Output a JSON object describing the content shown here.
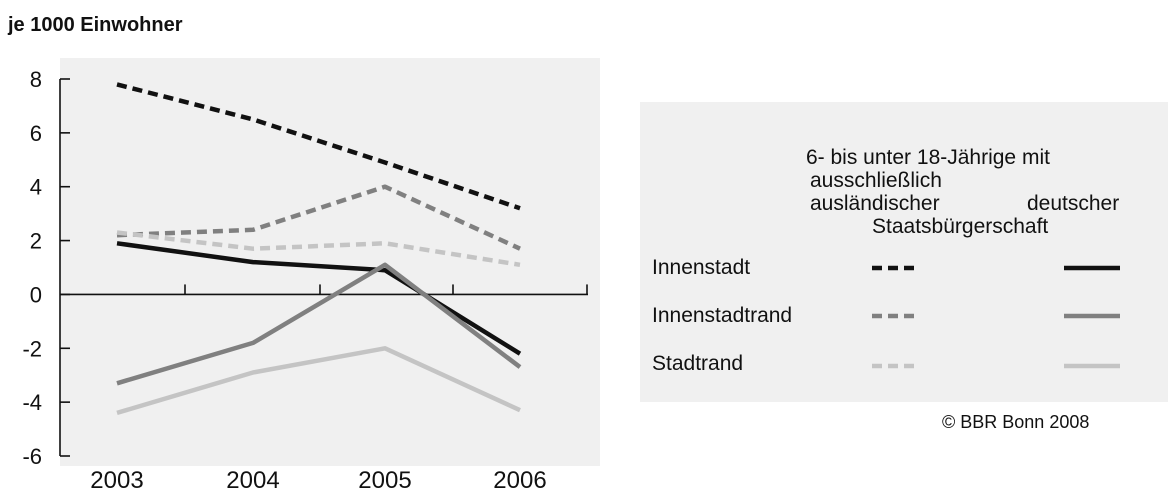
{
  "chart_data": {
    "type": "line",
    "ylabel": "je 1000 Einwohner",
    "ylim": [
      -6,
      8
    ],
    "yticks": [
      8,
      6,
      4,
      2,
      0,
      -2,
      -4,
      -6
    ],
    "categories": [
      "2003",
      "2004",
      "2005",
      "2006"
    ],
    "series": [
      {
        "name": "Innenstadt – ausschließlich ausländischer Staatsbürgerschaft",
        "color": "#111111",
        "dash": true,
        "values": [
          7.8,
          6.5,
          4.9,
          3.2
        ]
      },
      {
        "name": "Innenstadtrand – ausschließlich ausländischer Staatsbürgerschaft",
        "color": "#808080",
        "dash": true,
        "values": [
          2.2,
          2.4,
          4.0,
          1.7
        ]
      },
      {
        "name": "Stadtrand – ausschließlich ausländischer Staatsbürgerschaft",
        "color": "#c4c4c4",
        "dash": true,
        "values": [
          2.3,
          1.7,
          1.9,
          1.1
        ]
      },
      {
        "name": "Innenstadt – deutscher Staatsbürgerschaft",
        "color": "#111111",
        "dash": false,
        "values": [
          1.9,
          1.2,
          0.9,
          -2.2
        ]
      },
      {
        "name": "Innenstadtrand – deutscher Staatsbürgerschaft",
        "color": "#808080",
        "dash": false,
        "values": [
          -3.3,
          -1.8,
          1.1,
          -2.7
        ]
      },
      {
        "name": "Stadtrand – deutscher Staatsbürgerschaft",
        "color": "#c4c4c4",
        "dash": false,
        "values": [
          -4.4,
          -2.9,
          -2.0,
          -4.3
        ]
      }
    ]
  },
  "legend": {
    "head_line1": "6- bis unter 18-Jährige mit",
    "head_line2": "ausschließlich",
    "head_col1": "ausländischer",
    "head_col2": "deutscher",
    "head_line4": "Staatsbürgerschaft",
    "rows": [
      {
        "label": "Innenstadt",
        "color": "#111111"
      },
      {
        "label": "Innenstadtrand",
        "color": "#808080"
      },
      {
        "label": "Stadtrand",
        "color": "#c4c4c4"
      }
    ]
  },
  "copyright": "© BBR Bonn 2008"
}
